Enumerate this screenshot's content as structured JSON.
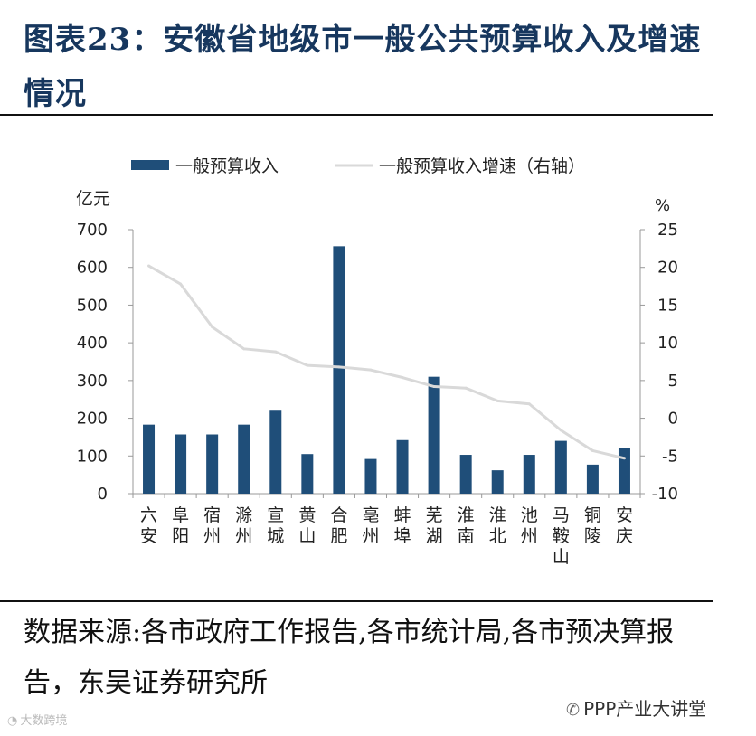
{
  "title": "图表23：安徽省地级市一般公共预算收入及增速情况",
  "source": "数据来源:各市政府工作报告,各市统计局,各市预决算报告，东吴证券研究所",
  "watermark_right": "PPP产业大讲堂",
  "watermark_left": "大数跨境",
  "chart_data": {
    "type": "bar",
    "categories": [
      "六安",
      "阜阳",
      "宿州",
      "滁州",
      "宣城",
      "黄山",
      "合肥",
      "亳州",
      "蚌埠",
      "芜湖",
      "淮南",
      "淮北",
      "池州",
      "马鞍山",
      "铜陵",
      "安庆"
    ],
    "series": [
      {
        "name": "一般预算收入",
        "type": "bar",
        "axis": "left",
        "color": "#1f4e79",
        "values": [
          183,
          157,
          157,
          183,
          220,
          105,
          656,
          92,
          142,
          310,
          103,
          62,
          103,
          140,
          77,
          121
        ]
      },
      {
        "name": "一般预算收入增速（右轴）",
        "type": "line",
        "axis": "right",
        "color": "#d9d9d9",
        "values": [
          20.2,
          17.8,
          12.1,
          9.2,
          8.8,
          7.0,
          6.8,
          6.4,
          5.4,
          4.2,
          4.0,
          2.3,
          1.9,
          -1.6,
          -4.3,
          -5.3
        ]
      }
    ],
    "ylabel_left": "亿元",
    "ylabel_right": "%",
    "ylim_left": [
      0,
      700
    ],
    "yticks_left": [
      "0",
      "100",
      "200",
      "300",
      "400",
      "500",
      "600",
      "700"
    ],
    "ylim_right": [
      -10,
      25
    ],
    "yticks_right": [
      "-10",
      "-5",
      "0",
      "5",
      "10",
      "15",
      "20",
      "25"
    ],
    "legend": "top",
    "grid": false
  }
}
